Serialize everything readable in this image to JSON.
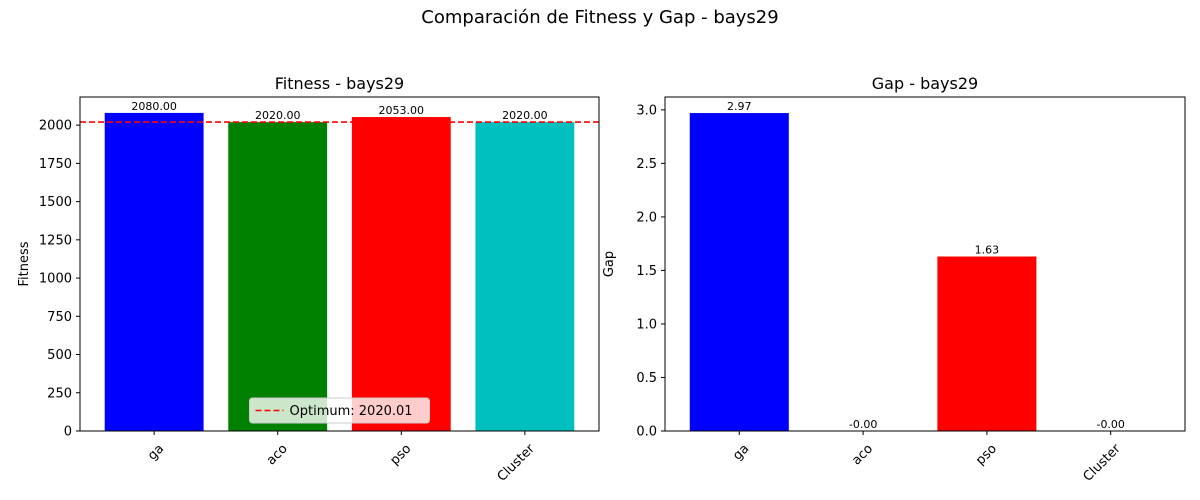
{
  "figure": {
    "suptitle": "Comparación de Fitness y Gap - bays29"
  },
  "chart_data": [
    {
      "type": "bar",
      "title": "Fitness - bays29",
      "xlabel": "",
      "ylabel": "Fitness",
      "categories": [
        "ga",
        "aco",
        "pso",
        "Cluster"
      ],
      "values": [
        2080,
        2020,
        2053,
        2020
      ],
      "value_labels": [
        "2080.00",
        "2020.00",
        "2053.00",
        "2020.00"
      ],
      "colors": [
        "#0000ff",
        "#008000",
        "#ff0000",
        "#00bfbf"
      ],
      "ylim": [
        0,
        2184
      ],
      "yticks": [
        0,
        250,
        500,
        750,
        1000,
        1250,
        1500,
        1750,
        2000
      ],
      "reference_line": {
        "value": 2020.01,
        "label": "Optimum: 2020.01",
        "color": "#ff0000",
        "style": "dashed"
      },
      "legend": {
        "position": "lower center",
        "entries": [
          "Optimum: 2020.01"
        ]
      },
      "grid": false
    },
    {
      "type": "bar",
      "title": "Gap - bays29",
      "xlabel": "",
      "ylabel": "Gap",
      "categories": [
        "ga",
        "aco",
        "pso",
        "Cluster"
      ],
      "values": [
        2.97,
        0.0,
        1.63,
        0.0
      ],
      "value_labels": [
        "2.97",
        "-0.00",
        "1.63",
        "-0.00"
      ],
      "colors": [
        "#0000ff",
        "#008000",
        "#ff0000",
        "#00bfbf"
      ],
      "ylim": [
        0,
        3.12
      ],
      "yticks": [
        0.0,
        0.5,
        1.0,
        1.5,
        2.0,
        2.5,
        3.0
      ],
      "ytick_labels": [
        "0.0",
        "0.5",
        "1.0",
        "1.5",
        "2.0",
        "2.5",
        "3.0"
      ],
      "grid": false
    }
  ]
}
